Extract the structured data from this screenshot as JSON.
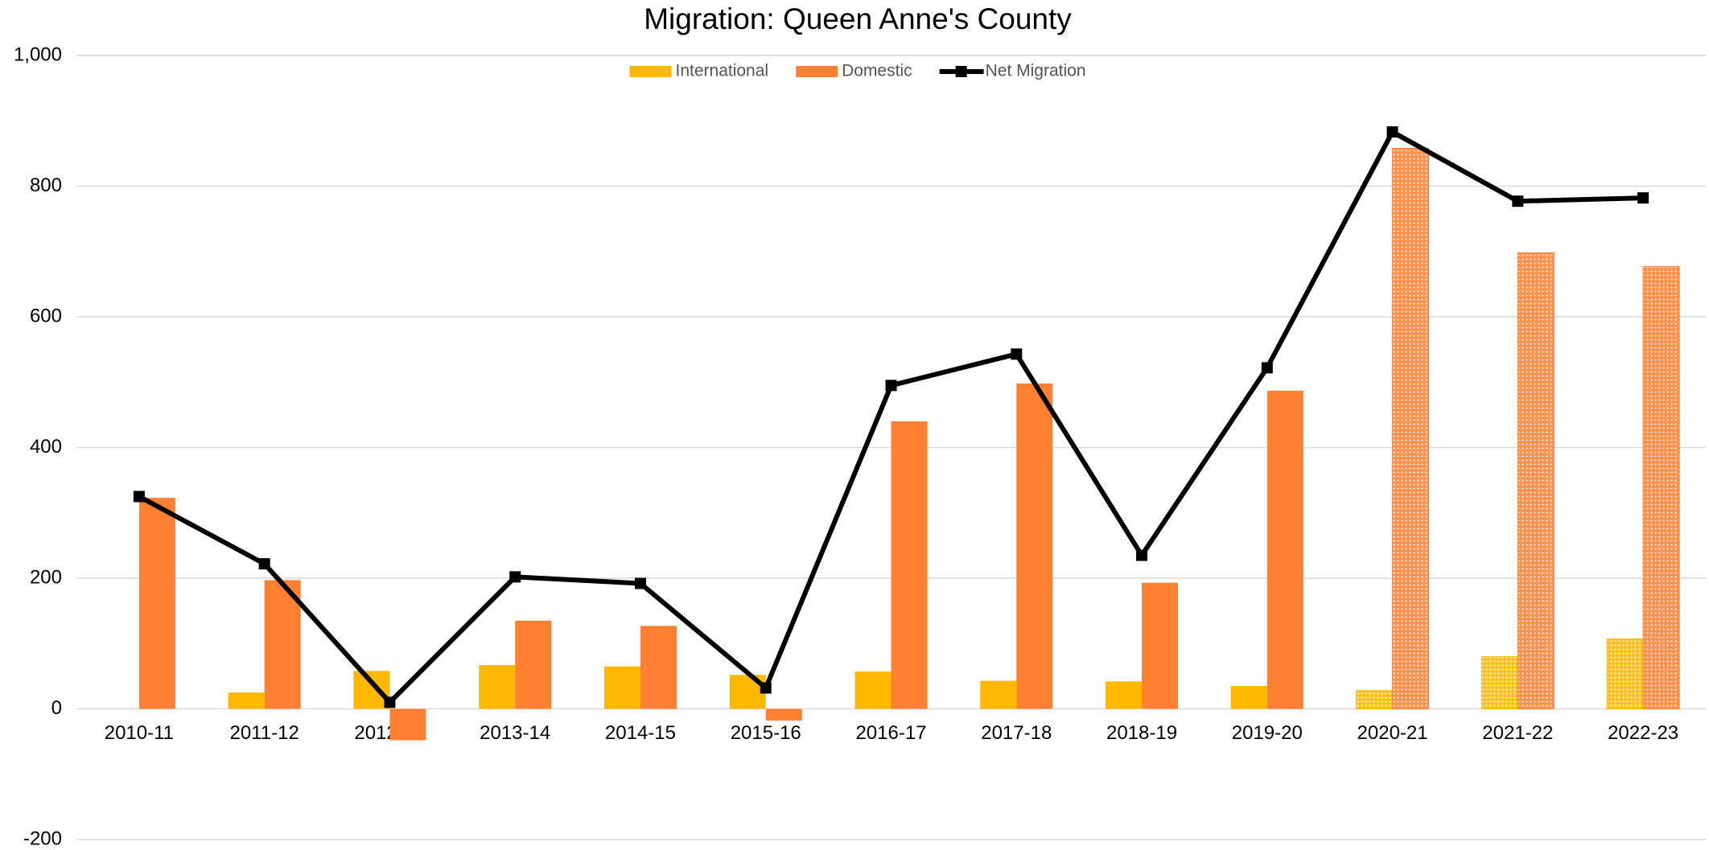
{
  "chart_data": {
    "type": "combo",
    "title": "Migration: Queen Anne's County",
    "categories": [
      "2010-11",
      "2011-12",
      "2012-13",
      "2013-14",
      "2014-15",
      "2015-16",
      "2016-17",
      "2017-18",
      "2018-19",
      "2019-20",
      "2020-21",
      "2021-22",
      "2022-23"
    ],
    "series": [
      {
        "name": "International",
        "type": "bar",
        "color": "#FFB800",
        "values": [
          0,
          25,
          58,
          67,
          65,
          52,
          57,
          43,
          42,
          35,
          28,
          80,
          107
        ]
      },
      {
        "name": "Domestic",
        "type": "bar",
        "color": "#FF8030",
        "values": [
          323,
          197,
          -48,
          135,
          127,
          -18,
          440,
          498,
          193,
          487,
          858,
          698,
          677
        ]
      },
      {
        "name": "Net Migration",
        "type": "line",
        "color": "#000000",
        "values": [
          325,
          222,
          10,
          202,
          192,
          32,
          495,
          543,
          235,
          522,
          883,
          777,
          782
        ]
      }
    ],
    "patterned": [
      false,
      false,
      false,
      false,
      false,
      false,
      false,
      false,
      false,
      false,
      true,
      true,
      true
    ],
    "ylim": [
      -200,
      1000
    ],
    "yticks": [
      -200,
      0,
      200,
      400,
      600,
      800,
      {
        "value": 1000,
        "label": "1,000"
      }
    ],
    "grid": true,
    "legend": "top"
  }
}
